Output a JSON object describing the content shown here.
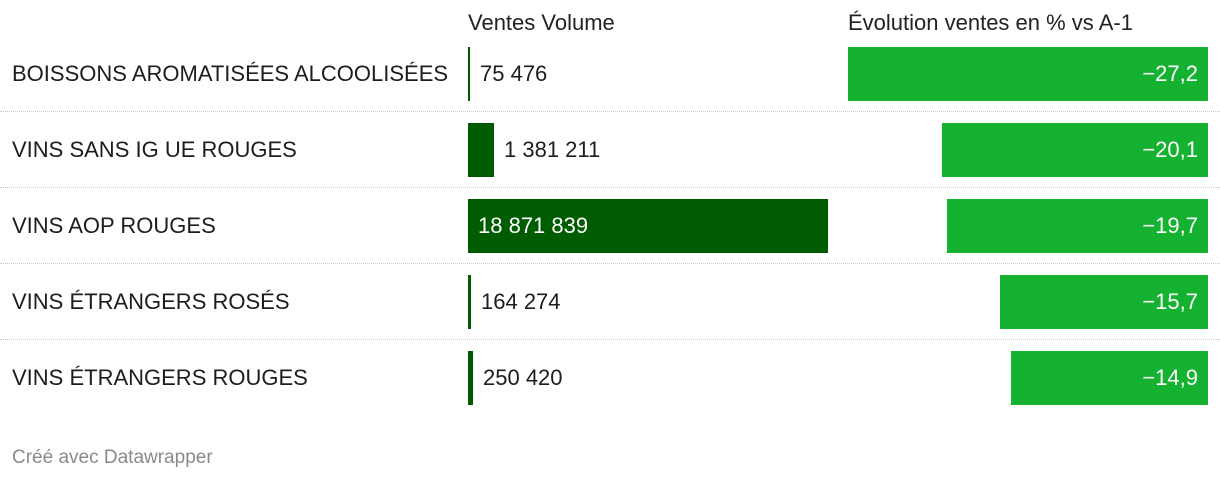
{
  "chart_data": {
    "type": "table",
    "columns": [
      "",
      "Ventes Volume",
      "Évolution ventes en % vs A-1"
    ],
    "rows": [
      {
        "category": "BOISSONS AROMATISÉES ALCOOLISÉES",
        "volume": 75476,
        "volume_label": "75 476",
        "evolution": -27.2,
        "evolution_label": "−27,2"
      },
      {
        "category": "VINS SANS IG UE ROUGES",
        "volume": 1381211,
        "volume_label": "1 381 211",
        "evolution": -20.1,
        "evolution_label": "−20,1"
      },
      {
        "category": "VINS AOP ROUGES",
        "volume": 18871839,
        "volume_label": "18 871 839",
        "evolution": -19.7,
        "evolution_label": "−19,7"
      },
      {
        "category": "VINS ÉTRANGERS ROSÉS",
        "volume": 164274,
        "volume_label": "164 274",
        "evolution": -15.7,
        "evolution_label": "−15,7"
      },
      {
        "category": "VINS ÉTRANGERS ROUGES",
        "volume": 250420,
        "volume_label": "250 420",
        "evolution": -14.9,
        "evolution_label": "−14,9"
      }
    ],
    "colors": {
      "volume_bar": "#005c00",
      "evolution_bar": "#15b232"
    }
  },
  "headers": {
    "volume": "Ventes Volume",
    "evolution": "Évolution ventes en % vs A-1"
  },
  "footer": "Créé avec Datawrapper"
}
